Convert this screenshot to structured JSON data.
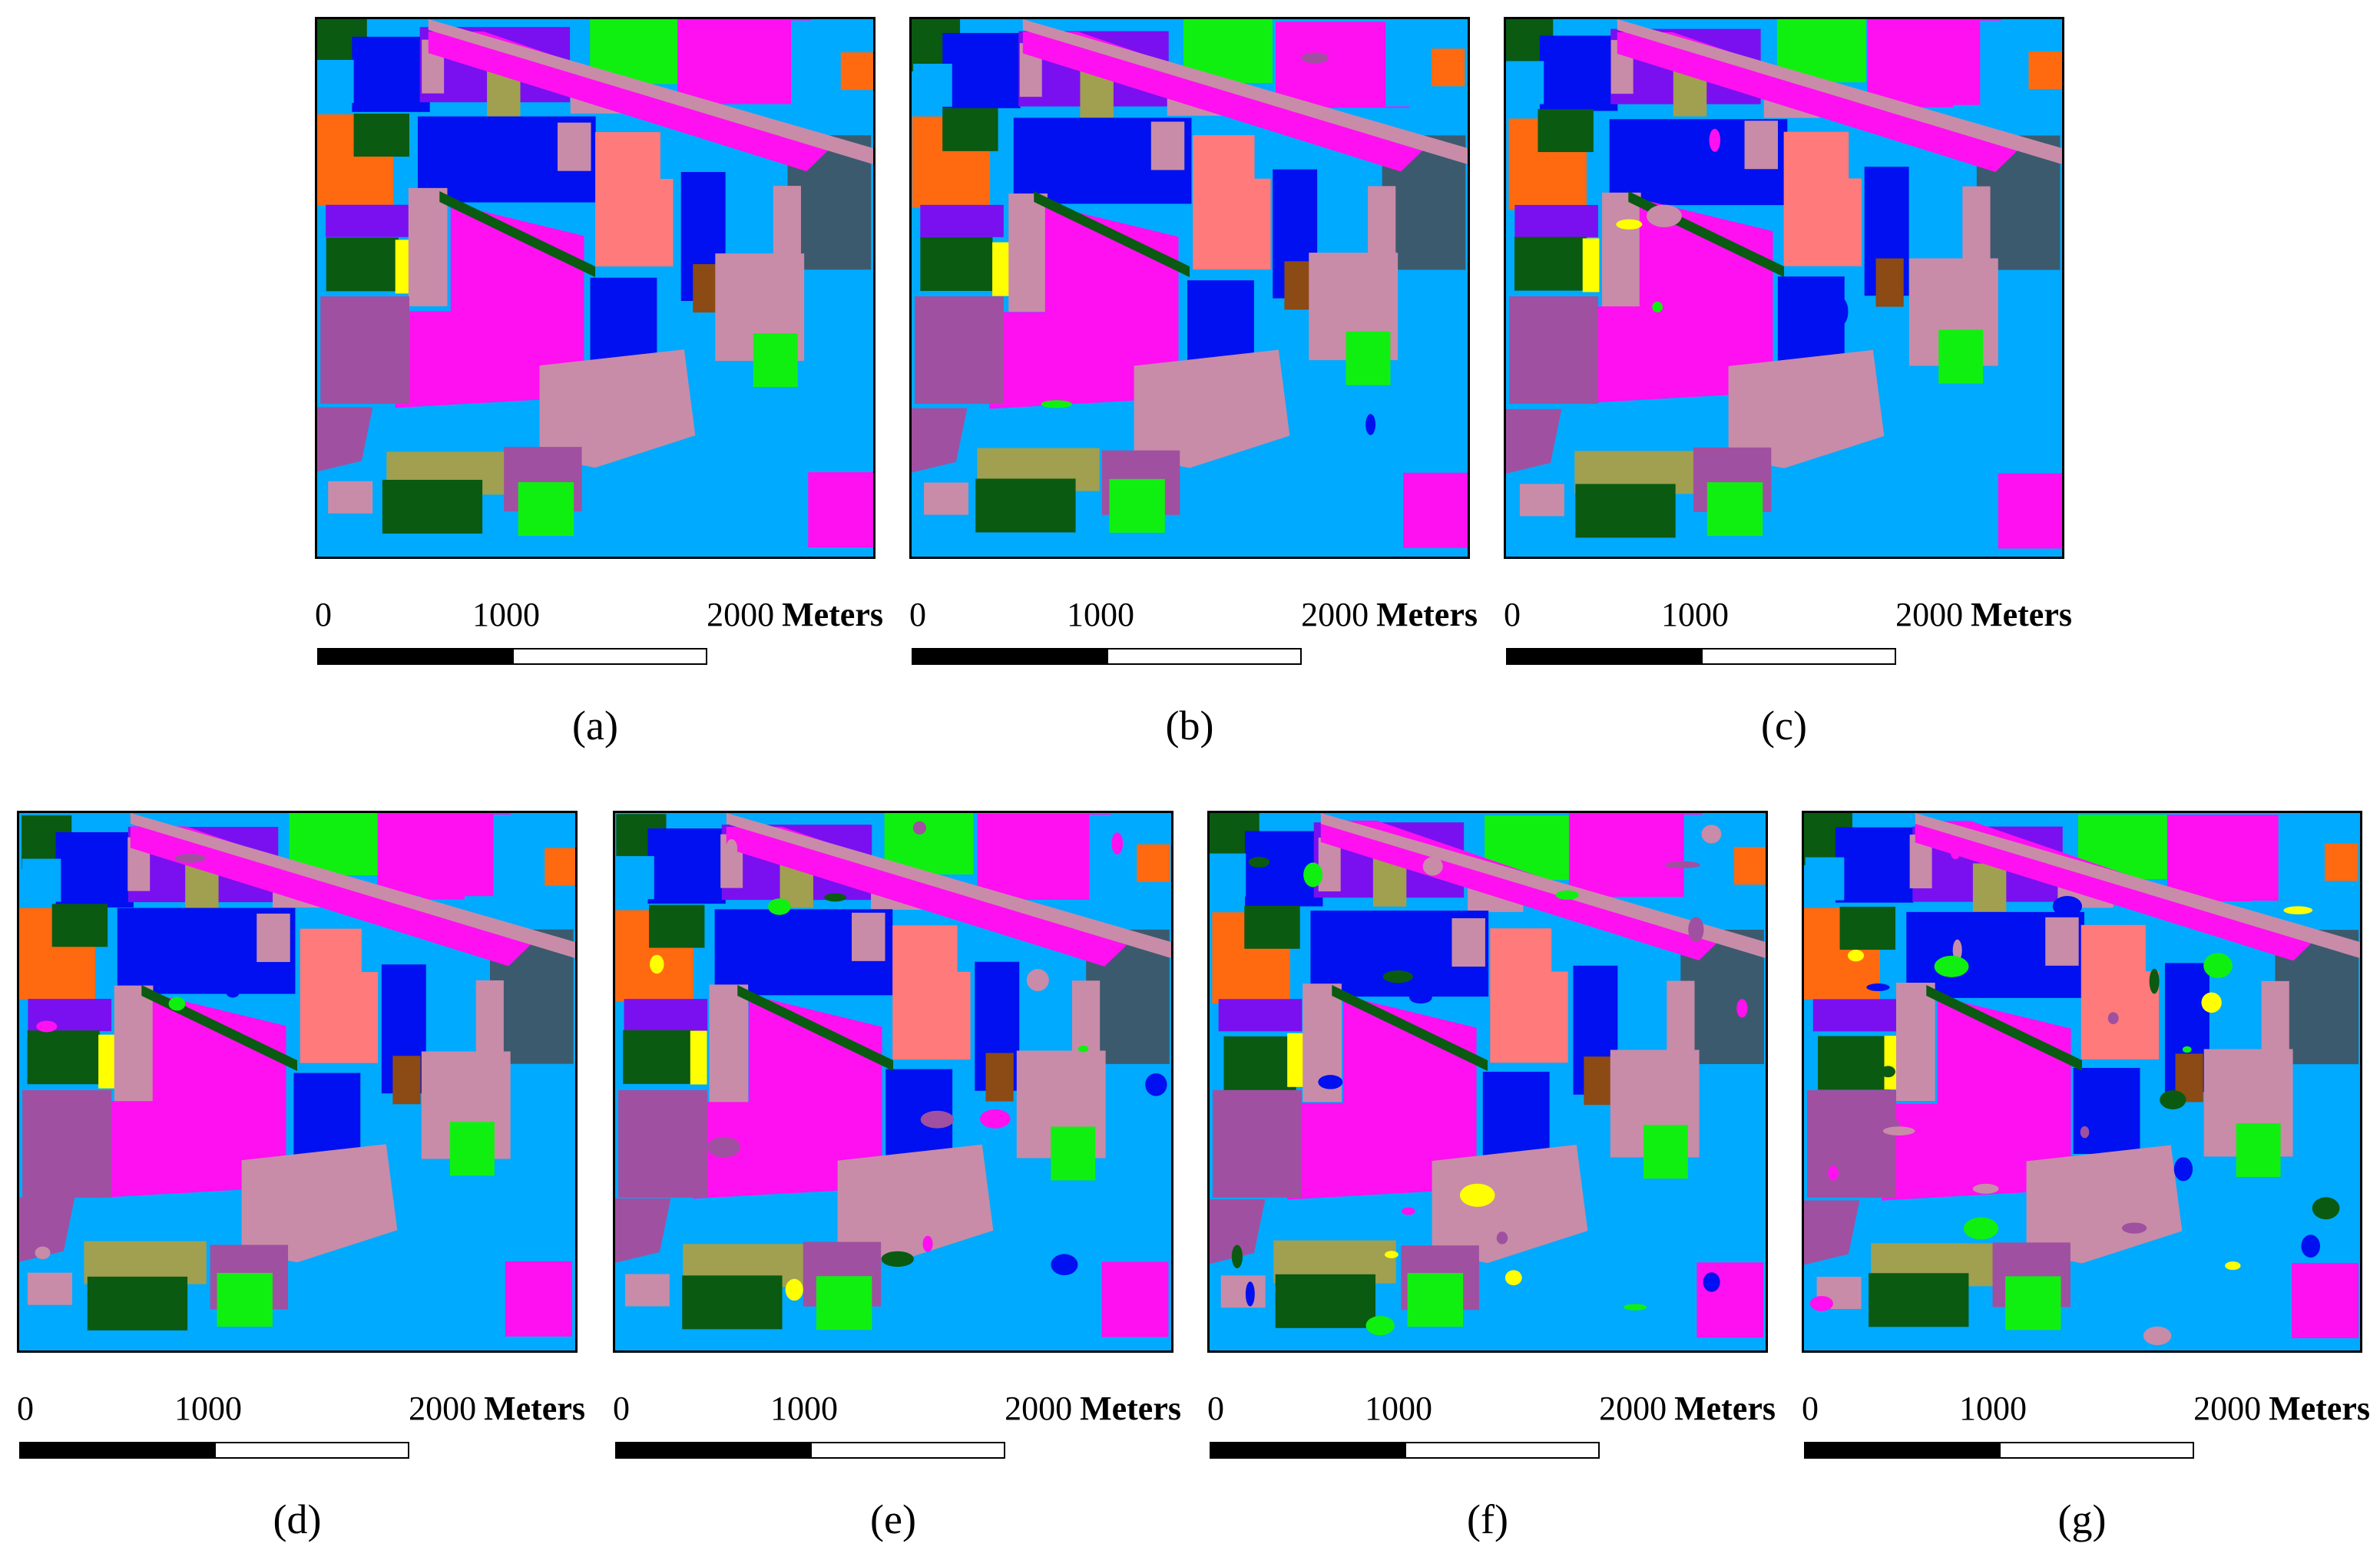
{
  "scale_bar": {
    "tick_0": "0",
    "tick_1000": "1000",
    "tick_2000": "2000",
    "unit": "Meters"
  },
  "palette": {
    "sky": "#00aaff",
    "magenta": "#ff10f0",
    "blue": "#0010f0",
    "violet": "#7a10f0",
    "green": "#10f010",
    "dark_green": "#0a5a12",
    "orange": "#ff6a10",
    "salmon": "#ff7a7a",
    "mauve": "#c88ca8",
    "plum": "#a050a0",
    "slate": "#3c5a6e",
    "olive": "#a0a050",
    "yellow": "#ffff00",
    "brown": "#8c4a14"
  },
  "panels": [
    {
      "id": "a",
      "caption": "(a)"
    },
    {
      "id": "b",
      "caption": "(b)"
    },
    {
      "id": "c",
      "caption": "(c)"
    },
    {
      "id": "d",
      "caption": "(d)"
    },
    {
      "id": "e",
      "caption": "(e)"
    },
    {
      "id": "f",
      "caption": "(f)"
    },
    {
      "id": "g",
      "caption": "(g)"
    }
  ]
}
